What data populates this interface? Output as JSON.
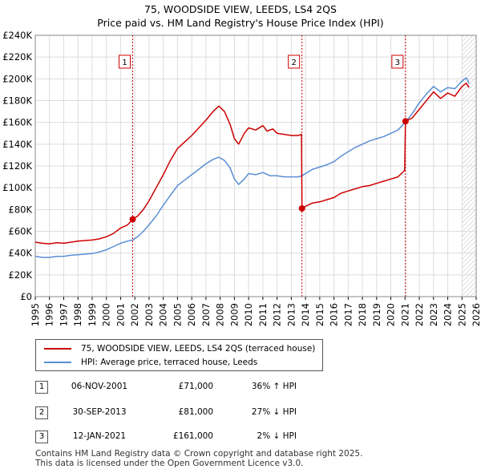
{
  "chart_data": {
    "type": "line",
    "title": "75, WOODSIDE VIEW, LEEDS, LS4 2QS",
    "subtitle": "Price paid vs. HM Land Registry's House Price Index (HPI)",
    "xlim": [
      1995,
      2026
    ],
    "ylim": [
      0,
      240000
    ],
    "x_ticks": [
      1995,
      1996,
      1997,
      1998,
      1999,
      2000,
      2001,
      2002,
      2003,
      2004,
      2005,
      2006,
      2007,
      2008,
      2009,
      2010,
      2011,
      2012,
      2013,
      2014,
      2015,
      2016,
      2017,
      2018,
      2019,
      2020,
      2021,
      2022,
      2023,
      2024,
      2025,
      2026
    ],
    "y_ticks": [
      0,
      20000,
      40000,
      60000,
      80000,
      100000,
      120000,
      140000,
      160000,
      180000,
      200000,
      220000,
      240000
    ],
    "y_tick_labels": [
      "£0",
      "£20K",
      "£40K",
      "£60K",
      "£80K",
      "£100K",
      "£120K",
      "£140K",
      "£160K",
      "£180K",
      "£200K",
      "£220K",
      "£240K"
    ],
    "series": [
      {
        "name": "75, WOODSIDE VIEW, LEEDS, LS4 2QS (terraced house)",
        "color": "#cc0000",
        "points": [
          [
            1995.0,
            50000
          ],
          [
            1995.5,
            49000
          ],
          [
            1996.0,
            48500
          ],
          [
            1996.5,
            49500
          ],
          [
            1997.0,
            49000
          ],
          [
            1997.5,
            50000
          ],
          [
            1998.0,
            51000
          ],
          [
            1998.5,
            51500
          ],
          [
            1999.0,
            52000
          ],
          [
            1999.5,
            53000
          ],
          [
            2000.0,
            55000
          ],
          [
            2000.5,
            58000
          ],
          [
            2001.0,
            63000
          ],
          [
            2001.5,
            66000
          ],
          [
            2001.85,
            71000
          ],
          [
            2002.2,
            74000
          ],
          [
            2002.6,
            80000
          ],
          [
            2003.0,
            88000
          ],
          [
            2003.5,
            100000
          ],
          [
            2004.0,
            112000
          ],
          [
            2004.5,
            125000
          ],
          [
            2005.0,
            136000
          ],
          [
            2005.5,
            142000
          ],
          [
            2006.0,
            148000
          ],
          [
            2006.5,
            155000
          ],
          [
            2007.0,
            162000
          ],
          [
            2007.5,
            170000
          ],
          [
            2007.9,
            175000
          ],
          [
            2008.3,
            170000
          ],
          [
            2008.7,
            158000
          ],
          [
            2009.0,
            145000
          ],
          [
            2009.3,
            140000
          ],
          [
            2009.7,
            150000
          ],
          [
            2010.0,
            155000
          ],
          [
            2010.5,
            153000
          ],
          [
            2011.0,
            157000
          ],
          [
            2011.3,
            152000
          ],
          [
            2011.7,
            154000
          ],
          [
            2012.0,
            150000
          ],
          [
            2012.5,
            149000
          ],
          [
            2013.0,
            148000
          ],
          [
            2013.5,
            148000
          ],
          [
            2013.72,
            149000
          ],
          [
            2013.75,
            81000
          ],
          [
            2014.0,
            83000
          ],
          [
            2014.5,
            86000
          ],
          [
            2015.0,
            87000
          ],
          [
            2015.5,
            89000
          ],
          [
            2016.0,
            91000
          ],
          [
            2016.5,
            95000
          ],
          [
            2017.0,
            97000
          ],
          [
            2017.5,
            99000
          ],
          [
            2018.0,
            101000
          ],
          [
            2018.5,
            102000
          ],
          [
            2019.0,
            104000
          ],
          [
            2019.5,
            106000
          ],
          [
            2020.0,
            108000
          ],
          [
            2020.5,
            110000
          ],
          [
            2020.97,
            116000
          ],
          [
            2021.03,
            161000
          ],
          [
            2021.5,
            164000
          ],
          [
            2022.0,
            172000
          ],
          [
            2022.5,
            180000
          ],
          [
            2023.0,
            188000
          ],
          [
            2023.5,
            182000
          ],
          [
            2024.0,
            187000
          ],
          [
            2024.5,
            184000
          ],
          [
            2025.0,
            193000
          ],
          [
            2025.3,
            196000
          ],
          [
            2025.5,
            192000
          ]
        ]
      },
      {
        "name": "HPI: Average price, terraced house, Leeds",
        "color": "#5b8fd4",
        "points": [
          [
            1995.0,
            37000
          ],
          [
            1995.5,
            36000
          ],
          [
            1996.0,
            36000
          ],
          [
            1996.5,
            37000
          ],
          [
            1997.0,
            37000
          ],
          [
            1997.5,
            38000
          ],
          [
            1998.0,
            38500
          ],
          [
            1998.5,
            39000
          ],
          [
            1999.0,
            39500
          ],
          [
            1999.5,
            41000
          ],
          [
            2000.0,
            43000
          ],
          [
            2000.5,
            46000
          ],
          [
            2001.0,
            49000
          ],
          [
            2001.5,
            51000
          ],
          [
            2001.85,
            52000
          ],
          [
            2002.2,
            55000
          ],
          [
            2002.6,
            60000
          ],
          [
            2003.0,
            66000
          ],
          [
            2003.5,
            74000
          ],
          [
            2004.0,
            84000
          ],
          [
            2004.5,
            93000
          ],
          [
            2005.0,
            102000
          ],
          [
            2005.5,
            107000
          ],
          [
            2006.0,
            112000
          ],
          [
            2006.5,
            117000
          ],
          [
            2007.0,
            122000
          ],
          [
            2007.5,
            126000
          ],
          [
            2007.9,
            128000
          ],
          [
            2008.3,
            125000
          ],
          [
            2008.7,
            118000
          ],
          [
            2009.0,
            108000
          ],
          [
            2009.3,
            103000
          ],
          [
            2009.7,
            108000
          ],
          [
            2010.0,
            113000
          ],
          [
            2010.5,
            112000
          ],
          [
            2011.0,
            114000
          ],
          [
            2011.5,
            111000
          ],
          [
            2012.0,
            111000
          ],
          [
            2012.5,
            110000
          ],
          [
            2013.0,
            110000
          ],
          [
            2013.5,
            110000
          ],
          [
            2013.75,
            111000
          ],
          [
            2014.0,
            113000
          ],
          [
            2014.5,
            117000
          ],
          [
            2015.0,
            119000
          ],
          [
            2015.5,
            121000
          ],
          [
            2016.0,
            124000
          ],
          [
            2016.5,
            129000
          ],
          [
            2017.0,
            133000
          ],
          [
            2017.5,
            137000
          ],
          [
            2018.0,
            140000
          ],
          [
            2018.5,
            143000
          ],
          [
            2019.0,
            145000
          ],
          [
            2019.5,
            147000
          ],
          [
            2020.0,
            150000
          ],
          [
            2020.5,
            153000
          ],
          [
            2021.0,
            160000
          ],
          [
            2021.5,
            168000
          ],
          [
            2022.0,
            178000
          ],
          [
            2022.5,
            186000
          ],
          [
            2023.0,
            193000
          ],
          [
            2023.5,
            188000
          ],
          [
            2024.0,
            192000
          ],
          [
            2024.5,
            191000
          ],
          [
            2025.0,
            198000
          ],
          [
            2025.3,
            201000
          ],
          [
            2025.5,
            196000
          ]
        ]
      }
    ],
    "sales": [
      {
        "label": "1",
        "x": 2001.85,
        "value": 71000
      },
      {
        "label": "2",
        "x": 2013.75,
        "value": 81000
      },
      {
        "label": "3",
        "x": 2021.03,
        "value": 161000
      }
    ],
    "marker_label_value": 215000,
    "hatch_from": 2025.0
  },
  "legend": {
    "property": "75, WOODSIDE VIEW, LEEDS, LS4 2QS (terraced house)",
    "hpi": "HPI: Average price, terraced house, Leeds"
  },
  "sales_table": [
    {
      "num": "1",
      "date": "06-NOV-2001",
      "price": "£71,000",
      "hpi": "36% ↑ HPI"
    },
    {
      "num": "2",
      "date": "30-SEP-2013",
      "price": "£81,000",
      "hpi": "27% ↓ HPI"
    },
    {
      "num": "3",
      "date": "12-JAN-2021",
      "price": "£161,000",
      "hpi": "2% ↓ HPI"
    }
  ],
  "footer": {
    "line1": "Contains HM Land Registry data © Crown copyright and database right 2025.",
    "line2": "This data is licensed under the Open Government Licence v3.0."
  },
  "colors": {
    "property_line": "#cc0000",
    "hpi_line": "#5b8fd4",
    "sale_marker_line": "#cc0000",
    "grid": "#dddddd"
  }
}
